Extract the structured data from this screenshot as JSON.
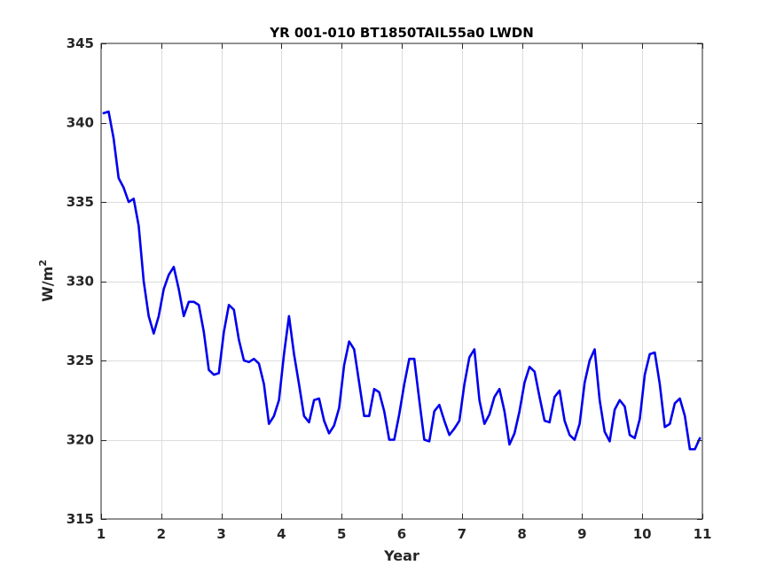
{
  "chart_data": {
    "type": "line",
    "title": "YR 001-010 BT1850TAIL55a0 LWDN",
    "xlabel": "Year",
    "ylabel_base": "W/m",
    "ylabel_sup": "2",
    "xlim": [
      1,
      11
    ],
    "ylim": [
      315,
      345
    ],
    "xticks": [
      1,
      2,
      3,
      4,
      5,
      6,
      7,
      8,
      9,
      10,
      11
    ],
    "yticks": [
      315,
      320,
      325,
      330,
      335,
      340,
      345
    ],
    "grid": true,
    "line_color": "#0000ee",
    "series": [
      {
        "values": [
          340.6,
          340.7,
          339.0,
          336.5,
          335.9,
          335.0,
          335.2,
          333.5,
          330.0,
          327.8,
          326.7,
          327.8,
          329.5,
          330.4,
          330.9,
          329.5,
          327.8,
          328.7,
          328.7,
          328.5,
          326.8,
          324.4,
          324.1,
          324.2,
          326.8,
          328.5,
          328.2,
          326.3,
          325.0,
          324.9,
          325.1,
          324.8,
          323.5,
          321.0,
          321.5,
          322.5,
          325.4,
          327.8,
          325.4,
          323.5,
          321.5,
          321.1,
          322.5,
          322.6,
          321.2,
          320.4,
          320.9,
          322.0,
          324.7,
          326.2,
          325.7,
          323.6,
          321.5,
          321.5,
          323.2,
          323.0,
          321.8,
          320.0,
          320.0,
          321.6,
          323.5,
          325.1,
          325.1,
          322.5,
          320.0,
          319.9,
          321.8,
          322.2,
          321.2,
          320.3,
          320.7,
          321.2,
          323.5,
          325.2,
          325.7,
          322.5,
          321.0,
          321.6,
          322.7,
          323.2,
          321.8,
          319.7,
          320.4,
          321.8,
          323.6,
          324.6,
          324.3,
          322.7,
          321.2,
          321.1,
          322.7,
          323.1,
          321.2,
          320.3,
          320.0,
          321.0,
          323.6,
          325.0,
          325.7,
          322.5,
          320.5,
          319.9,
          321.9,
          322.5,
          322.1,
          320.3,
          320.1,
          321.3,
          324.1,
          325.4,
          325.5,
          323.5,
          320.8,
          321.0,
          322.3,
          322.6,
          321.5,
          319.4,
          319.4,
          320.1
        ]
      }
    ]
  }
}
